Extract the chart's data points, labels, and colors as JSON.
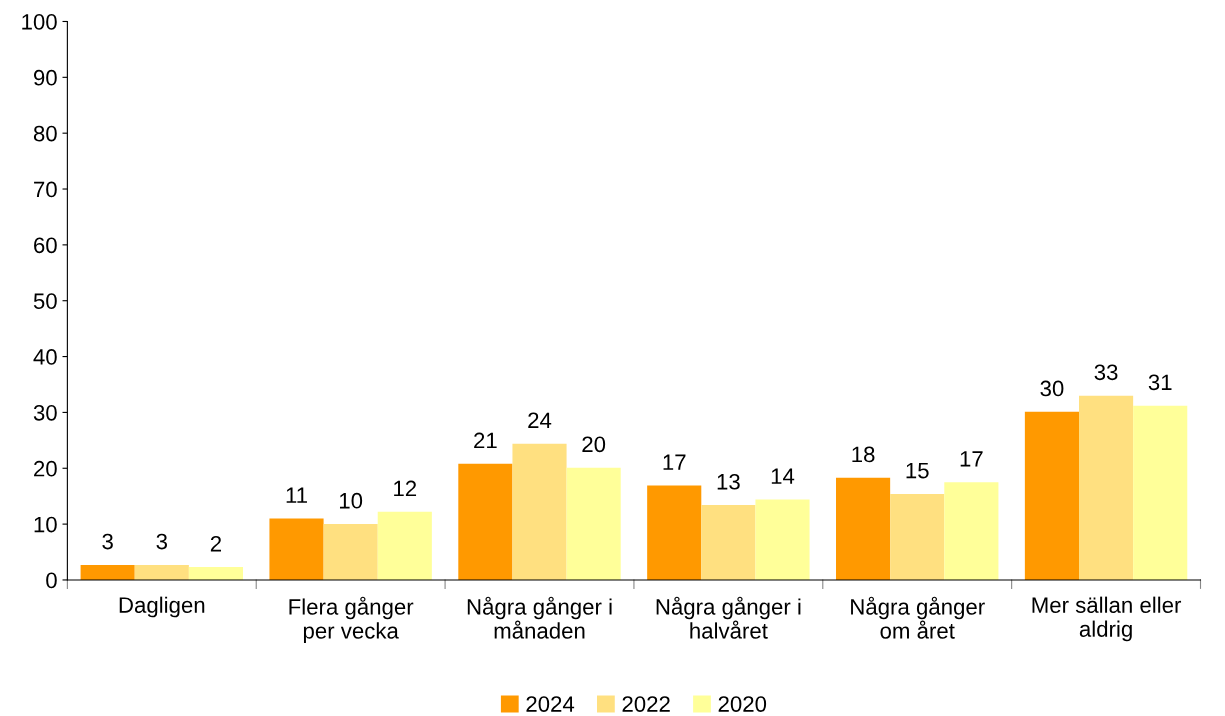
{
  "chart_data": {
    "type": "bar",
    "categories": [
      "Dagligen",
      "Flera gånger\nper vecka",
      "Några gånger i\nmånaden",
      "Några gånger i\nhalvåret",
      "Några gånger\nom året",
      "Mer sällan eller\naldrig"
    ],
    "series": [
      {
        "name": "2024",
        "color": "#ff9900",
        "values": [
          2.7,
          11,
          20.8,
          16.9,
          18.3,
          30.1
        ],
        "value_labels": [
          "3",
          "11",
          "21",
          "17",
          "18",
          "30"
        ]
      },
      {
        "name": "2022",
        "color": "#ffe080",
        "values": [
          2.7,
          10,
          24.4,
          13.4,
          15.4,
          33
        ],
        "value_labels": [
          "3",
          "10",
          "24",
          "13",
          "15",
          "33"
        ]
      },
      {
        "name": "2020",
        "color": "#ffff99",
        "values": [
          2.3,
          12.2,
          20.1,
          14.4,
          17.5,
          31.2
        ],
        "value_labels": [
          "2",
          "12",
          "20",
          "14",
          "17",
          "31"
        ]
      }
    ],
    "ylim": [
      0,
      100
    ],
    "yticks": [
      0,
      10,
      20,
      30,
      40,
      50,
      60,
      70,
      80,
      90,
      100
    ],
    "grid": false,
    "legend": "bottom"
  }
}
